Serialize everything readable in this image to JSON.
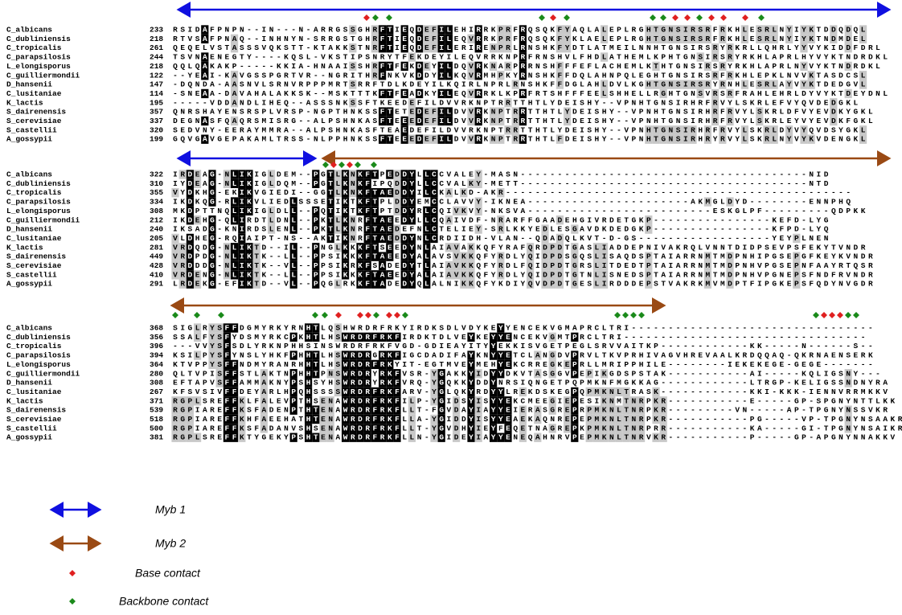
{
  "blocks": [
    {
      "rows": [
        {
          "name": "C_albicans",
          "start": "233",
          "seq": "RSIDAFPNPN--IN---N-ARRGSSGHRFTIEQDEFILEHIRRKPRFRQSQKFYAQLALEPLRGHTGNSIRSRFRKHLESRLNYIYKTDDQDQL"
        },
        {
          "name": "C_dubliniensis",
          "start": "218",
          "seq": "RTVSAFPNAQ--INHNYN-SRRGSTGHRFTIEQDEFILEQVRRKPRFRQSQKFYKLAELEPLRGHTGNSIRSRFRKHLESRLNYIYKTNDMDEL"
        },
        {
          "name": "C_tropicalis",
          "start": "261",
          "seq": "QEQELVSTASSSVQKSTT-KTAKKSTNRFTIEQDEFILERIRENPRLRNSHKFYDTLATMEILNNHTGNSIRSRYRKRLLQHRLYYVYKIDDFDRL"
        },
        {
          "name": "C_parapsilosis",
          "start": "244",
          "seq": "TSVNAENEGTY----KQSL-VKSTIPSNRYTFEKDEYILEQVRRKNPRFRNSHVLFHDLATHEMLKPHTGNSIRSRYRKHLAPRLHYVYKTNDRDKL"
        },
        {
          "name": "L_elongisporus",
          "start": "218",
          "seq": "QQLQAKAKP-----KKIA-HNAAISSHRFTFEKDEYILDQVRKNARPRRNSHFFFEFLACHEMLKTHTGNSIRSRYRKHLAPRLNYVYKTNDRDKL"
        },
        {
          "name": "C_guilliermondii",
          "start": "122",
          "seq": "--YEAI-KAVGSSPGRTVR--NGRITHRFNKVKDDYILKQVRMHPKYRNSHKFFDQLAHNPQLEGHTGNSIRSRFRKHLEPKLNVVKTASDCSL"
        },
        {
          "name": "D_hansenii",
          "start": "147",
          "seq": "-DQNDA-AASNVLSRNVRPPPMRTSRRFTDLKDEYILKQIRLNPRLRNSHKFFDGLAHLDVLKGHTGNSIRSRYRNHLESRLAYVYKTDEDGVL"
        },
        {
          "name": "C_lusitaniae",
          "start": "114",
          "seq": "-SNEAA-DAVAHALAKKSK--MSKTTTKFTFEADKYILEQVRRKLKPRFRTSHFFFEELSHHELLRGHTGNSVRSRFRAHLEHRLDYVYKTDEYDNL"
        },
        {
          "name": "K_lactis",
          "start": "195",
          "seq": "-----VDDANDLIHEQ--ASSSNKSSFTKEEDEFILDVVRKNPTRRTTHTLYDEISHY--VPNHTGNSIRHRFRVYLSKRLEFVYQVDEDGKL"
        },
        {
          "name": "S_dairenensis",
          "start": "357",
          "seq": "QNRSHAYENSRSPLVRSP-NGPTHNKSSFTETEDEFILDVVRKNPTRRTTHTLYDEISHY--VPNHTGNSIRHRFRVYLSKRLDFVYEVDKYGKL"
        },
        {
          "name": "S_cerevisiae",
          "start": "337",
          "seq": "DEGNASFQAQRSMISRG--ALPSHNKASFTEEEDEFILDVVRKNPTRRTTHTLYDEISHY--VPNHTGNSIRHRFRVYLSKRLEYVYEVDKFGKL"
        },
        {
          "name": "S_castellii",
          "start": "320",
          "seq": "SEDVNY-EERAYMMRA--ALPSHNKASFTEAEDEFILDVVRKNPTRRTTHTLYDEISHY--VPNHTGNSIRHRFRVYLSKRLDYVYQVDSYGKL"
        },
        {
          "name": "A_gossypii",
          "start": "199",
          "seq": "GQVGAVGEPAKAMLTRSS-NLPPHNKSSFTEEEDEFILDVVRKNPTRRTHTLFDEISHY--VPNHTGNSIRHRYRVYLSKRLNYVYKVDENGKL"
        }
      ]
    },
    {
      "rows": [
        {
          "name": "C_albicans",
          "start": "322",
          "seq": "IRDEAG-NLIKIGLDEM--PGTLKNKFTPEDDYLLCCVALEY-MASN---------------------------------------NID"
        },
        {
          "name": "C_dubliniensis",
          "start": "310",
          "seq": "IYDEAG-NLIKIGLDQM--PGTLKNKFIPQDDYLLCCVALKY-METT---------------------------------------NTD"
        },
        {
          "name": "C_tropicalis",
          "start": "355",
          "seq": "VYDKHG-EKIKVGIEDI--GGTLKNKFTAEDDYILCKALKD-AKR-----------------------------------------------"
        },
        {
          "name": "C_parapsilosis",
          "start": "334",
          "seq": "IKDKQG-RLIKVLIEDLSSSETIKTKFTPLDDYEMCCLAVVY-IKNEA----------------------AKMGLDYD--------ENNPHQ"
        },
        {
          "name": "L_elongisporus",
          "start": "308",
          "seq": "MKDPTTNQLIKIGLDLL--PQTIKTKFTPTDDYRLCQIVKVY-NKSVA-------------------------ESKGLPF---------QDPKK"
        },
        {
          "name": "C_guilliermondii",
          "start": "212",
          "seq": "IKDEHG-QLIRDTLDNL--PKTLKNRFTAEEDYLLCQAIVDF-NRARFFGAADEHGIVRDETGKP----------------KEFD-LYG"
        },
        {
          "name": "D_hansenii",
          "start": "240",
          "seq": "IKSADG-KNIRDSLENL--PKTLKNRFTAEDEFNLCTELIEY-SRLKKYEDLESGAVDKDEDGKP----------------KFPD-LYQ"
        },
        {
          "name": "C_lusitaniae",
          "start": "205",
          "seq": "VLDHEG-RQIAIPT-NS--AKTIKNRFTAEDDYNLCRDIIDH-VLAN--QDADQLKVT-D-GS------------------YEYPLNEN"
        },
        {
          "name": "K_lactis",
          "start": "281",
          "seq": "VRDQDG-NLIKTD--IL--PNGLKKKFTSEEDYNLAIAVAKKQFYRAFQRDPDTGASLIADDEPNIVAKRQLVNNTDIDPSEVPSFEKYTVNDR"
        },
        {
          "name": "S_dairenensis",
          "start": "449",
          "seq": "VRDPDG-NLIKTK--LL--PPSIKKKFTAEEDYALAVSVKKQFYRDLYQIDPDSGQSLISAQDSPTAIARRNMTMDPNHIPGSEPGFKEYKVNDR"
        },
        {
          "name": "S_cerevisiae",
          "start": "428",
          "seq": "VRDDDG-NLIKTK--VL--PPSIKRKFSADEDYTLAIAVKKQFYRDLFQIDPDTGRSLITDEDTPTAIARRNMTMDPNHVPGSEPNFAAYRTQSR"
        },
        {
          "name": "S_castellii",
          "start": "410",
          "seq": "VRDENG-NLIKTK--LL--PPSIKKKFTAEEDYALAIAVKKQFYRDLYQIDPDTGTNLISNEDSPTAIARRNMTMDPNHVPGNEPSFNDFRVNDR"
        },
        {
          "name": "A_gossypii",
          "start": "291",
          "seq": "LRDEKG-EFIKTD--VL--PQGLRKKFTADEDYQLALNIKKQFYKDIYQVDPDTGESLIRDDDEPSTVAKRKMVMDPTFIPGKEPSFQDYNVGDR"
        }
      ]
    },
    {
      "rows": [
        {
          "name": "C_albicans",
          "start": "368",
          "seq": "SIGLRYSFFDGMYRKYRNHTLQSHWRDRFRKYIRDKSDLVDYKEYYENCEKVGMAPRCLTRI---------------------------------"
        },
        {
          "name": "C_dubliniensis",
          "start": "356",
          "seq": "SSALFYSFYDSMYRKCPKHTLHSWRDRFRKFIRDKTDLVEYKEYYENCEKVGMTPRCLTRI---------------------------------"
        },
        {
          "name": "C_tropicalis",
          "start": "396",
          "seq": "---VVYSFSDLYRKNPHHSINSWRDRFRKFVGD-GDIEAYITYYEKKISVGETPEGLSRVVAITKP------------KK-----N------S--"
        },
        {
          "name": "C_parapsilosis",
          "start": "394",
          "seq": "KSILPYSFYNSLYHKFPHHTLHSWRDRGRKFIGCDADIFAYKNYYETCLANGDVPRVLTKVPRHIVAGVHREVAALKRDQQAQ-QKRNAENSERK"
        },
        {
          "name": "L_elongisporus",
          "start": "364",
          "seq": "KTVPPYSFFNDMYRANRHHTLHSWRDRFRKYIT-EGTMVEYMEHYEKCRREGKEPRLLMRIPPHILE--------IEKEKEGE-GEGE-------"
        },
        {
          "name": "C_guilliermondii",
          "start": "280",
          "seq": "QLTVPISFFSTLAKTNPHHTPNSWRDRYRKFVSR-YGAKKYIDYYDKVTASGGVPEPIKGDSPSTAK-----------AI-----KQLIGSNY---"
        },
        {
          "name": "D_hansenii",
          "start": "308",
          "seq": "EFTAPVSFFAMMAKNYPSHSYHSWRDRYRKFVRQ-YGQKKYDDYNRSIQNGETPQPMKNFMGKKAG------------LTRGP-KELIGSSNDNYRA"
        },
        {
          "name": "C_lusitaniae",
          "start": "267",
          "seq": "KFSVSIVFFDEYARLHPQHSSSSWRDRFRKFARV-YGLQKYRDYYLREKDSKEGPQPMKNLTRASK------------KKI-KKK-IENNVRRMKKV"
        },
        {
          "name": "K_lactis",
          "start": "371",
          "seq": "RGPLSREFFKLFALEVPTHSENAWRDRFRKFILP-YGIDSYISYYEKCMEEGIEPESIKNMTNRPKR-----------E-----GP-SPGNYNTTLKK"
        },
        {
          "name": "S_dairenensis",
          "start": "539",
          "seq": "RGPIAREFFKSFADENPTHTENAWRDRFRKFLLT-FGVDAYIAYYEIERASGREPRPMKNLTNRPKR---------VN-----AP-TPGNYNSSVKR"
        },
        {
          "name": "S_cerevisiae",
          "start": "518",
          "seq": "RGPIAREFFKHFAEEHATHTENAWRDRFRKFLLA-YGIDDYISYYEAEKAQNREPEPMKNLTNRPKR-----------PG-----VP-TPGNYNSAAKR"
        },
        {
          "name": "S_castellii",
          "start": "500",
          "seq": "RGPIAREFFKSFADANVSHSENAWRDRFRKFLLT-YGVDHYIEYFEQETNAGREPKPMKNLTNRPRR-----------KA-----GI-TPGNYNSAIKR"
        },
        {
          "name": "A_gossypii",
          "start": "381",
          "seq": "RGPLSREFFKTYGEKYPSHTENAWRDRFRKFLLN-YGIDEYIAYYENEQAHNRVPEPMKNLTNRVKR-----------P-----GP-APGNYNNAKKV"
        }
      ]
    }
  ],
  "legend": {
    "myb1": "Myb 1",
    "myb2": "Myb 2",
    "base": "Base contact",
    "backbone": "Backbone contact"
  }
}
